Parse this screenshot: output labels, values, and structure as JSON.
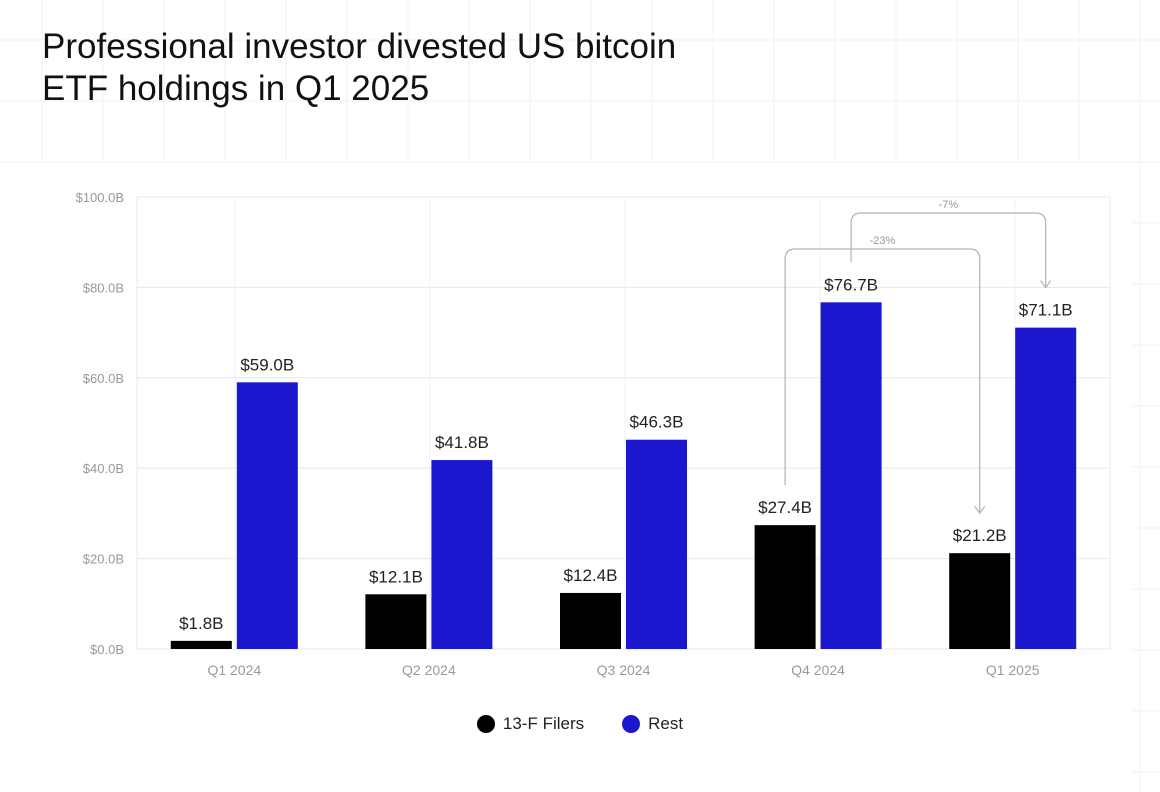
{
  "title_lines": [
    "Professional investor divested US bitcoin",
    "ETF holdings in Q1 2025"
  ],
  "colors": {
    "filers": "#000000",
    "rest": "#1a17cf",
    "axis_text": "#999999",
    "grid": "#e8e8e8",
    "annotation": "#b3b3b3"
  },
  "chart_data": {
    "type": "bar",
    "title": "Professional investor divested US bitcoin ETF holdings in Q1 2025",
    "categories": [
      "Q1 2024",
      "Q2 2024",
      "Q3 2024",
      "Q4 2024",
      "Q1 2025"
    ],
    "series": [
      {
        "name": "13-F Filers",
        "values": [
          1.8,
          12.1,
          12.4,
          27.4,
          21.2
        ],
        "labels": [
          "$1.8B",
          "$12.1B",
          "$12.4B",
          "$27.4B",
          "$21.2B"
        ]
      },
      {
        "name": "Rest",
        "values": [
          59.0,
          41.8,
          46.3,
          76.7,
          71.1
        ],
        "labels": [
          "$59.0B",
          "$41.8B",
          "$46.3B",
          "$76.7B",
          "$71.1B"
        ]
      }
    ],
    "ylim": [
      0,
      100
    ],
    "yticks": [
      0,
      20,
      40,
      60,
      80,
      100
    ],
    "ytick_labels": [
      "$0.0B",
      "$20.0B",
      "$40.0B",
      "$60.0B",
      "$80.0B",
      "$100.0B"
    ],
    "xlabel": "",
    "ylabel": "",
    "grid": true,
    "legend_position": "bottom-center",
    "annotations": [
      {
        "text": "-23%",
        "from": "13-F Filers Q4 2024",
        "to": "13-F Filers Q1 2025"
      },
      {
        "text": "-7%",
        "from": "Rest Q4 2024",
        "to": "Rest Q1 2025"
      }
    ]
  }
}
